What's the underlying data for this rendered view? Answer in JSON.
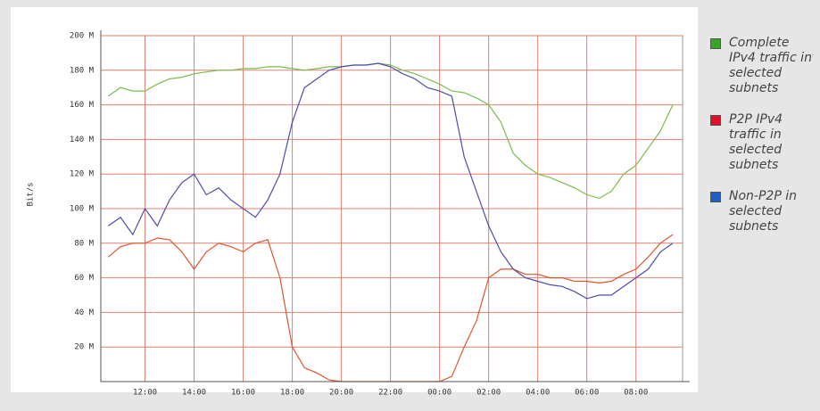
{
  "chart_data": {
    "type": "line",
    "y_label": "Bit/s",
    "x": [
      10.5,
      11,
      11.5,
      12,
      12.5,
      13,
      13.5,
      14,
      14.5,
      15,
      15.5,
      16,
      16.5,
      17,
      17.5,
      18,
      18.5,
      19,
      19.5,
      20,
      20.5,
      21,
      21.5,
      22,
      22.5,
      23,
      23.5,
      24,
      24.5,
      25,
      25.5,
      26,
      26.5,
      27,
      27.5,
      28,
      28.5,
      29,
      29.5,
      30,
      30.5,
      31,
      31.5,
      32,
      32.5,
      33,
      33.5
    ],
    "series": [
      {
        "name": "Complete IPv4 traffic in selected subnets",
        "color": "#7dbb4e",
        "values": [
          165,
          170,
          168,
          168,
          172,
          175,
          176,
          178,
          179,
          180,
          180,
          181,
          181,
          182,
          182,
          181,
          180,
          181,
          182,
          182,
          183,
          183,
          184,
          183,
          180,
          178,
          175,
          172,
          168,
          167,
          164,
          160,
          150,
          132,
          125,
          120,
          118,
          115,
          112,
          108,
          106,
          110,
          120,
          125,
          135,
          145,
          160
        ]
      },
      {
        "name": "P2P IPv4 traffic in selected subnets",
        "color": "#e0552e",
        "values": [
          72,
          78,
          80,
          80,
          83,
          82,
          75,
          65,
          75,
          80,
          78,
          75,
          80,
          82,
          60,
          20,
          8,
          5,
          1,
          0,
          0,
          0,
          0,
          0,
          0,
          0,
          0,
          0,
          3,
          20,
          35,
          60,
          65,
          65,
          62,
          62,
          60,
          60,
          58,
          58,
          57,
          58,
          62,
          65,
          72,
          80,
          85
        ]
      },
      {
        "name": "Non-P2P in selected subnets",
        "color": "#4a4fa8",
        "values": [
          90,
          95,
          85,
          100,
          90,
          105,
          115,
          120,
          108,
          112,
          105,
          100,
          95,
          105,
          120,
          150,
          170,
          175,
          180,
          182,
          183,
          183,
          184,
          182,
          178,
          175,
          170,
          168,
          165,
          130,
          110,
          90,
          75,
          65,
          60,
          58,
          56,
          55,
          52,
          48,
          50,
          50,
          55,
          60,
          65,
          75,
          80
        ]
      }
    ],
    "legend_swatches": [
      "#3aa32a",
      "#e0102a",
      "#1f5fbf"
    ],
    "xlim": [
      10.2,
      33.9
    ],
    "xticks": [
      {
        "value": 12,
        "label": "12:00"
      },
      {
        "value": 14,
        "label": "14:00"
      },
      {
        "value": 16,
        "label": "16:00"
      },
      {
        "value": 18,
        "label": "18:00"
      },
      {
        "value": 20,
        "label": "20:00"
      },
      {
        "value": 22,
        "label": "22:00"
      },
      {
        "value": 24,
        "label": "00:00"
      },
      {
        "value": 26,
        "label": "02:00"
      },
      {
        "value": 28,
        "label": "04:00"
      },
      {
        "value": 30,
        "label": "06:00"
      },
      {
        "value": 32,
        "label": "08:00"
      }
    ],
    "ylim": [
      0,
      200
    ],
    "yticks": [
      {
        "value": 20,
        "label": "20 M"
      },
      {
        "value": 40,
        "label": "40 M"
      },
      {
        "value": 60,
        "label": "60 M"
      },
      {
        "value": 80,
        "label": "80 M"
      },
      {
        "value": 100,
        "label": "100 M"
      },
      {
        "value": 120,
        "label": "120 M"
      },
      {
        "value": 140,
        "label": "140 M"
      },
      {
        "value": 160,
        "label": "160 M"
      },
      {
        "value": 180,
        "label": "180 M"
      },
      {
        "value": 200,
        "label": "200 M"
      }
    ],
    "grid": true,
    "grid_color": "#e08070"
  }
}
